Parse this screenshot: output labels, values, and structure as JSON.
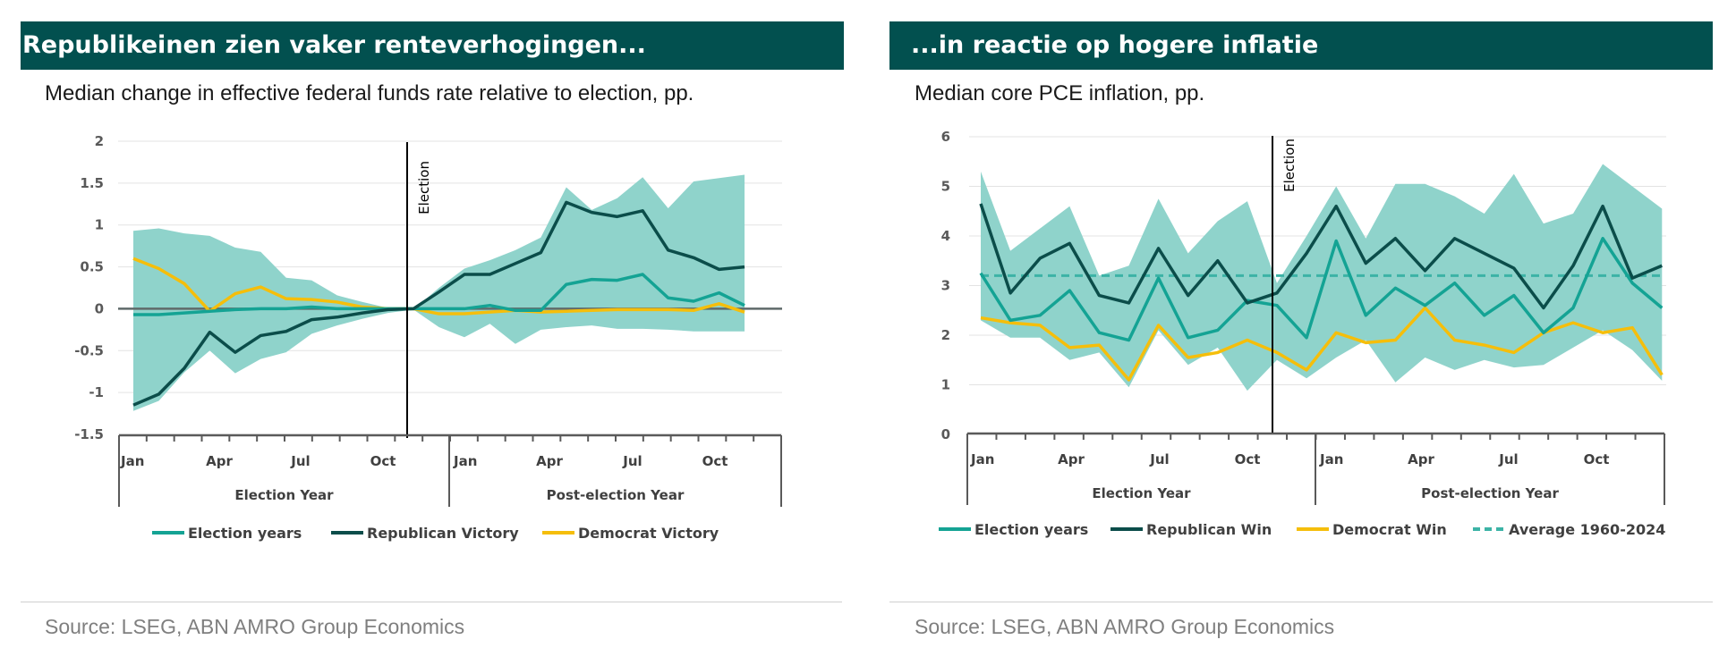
{
  "left": {
    "title": "Republikeinen zien vaker renteverhogingen...",
    "subtitle": "Median change in effective federal funds rate relative to election, pp.",
    "source": "Source:  LSEG, ABN AMRO Group Economics"
  },
  "right": {
    "title": "...in reactie op hogere inflatie",
    "subtitle": "Median core PCE inflation, pp.",
    "source": "Source: LSEG, ABN AMRO Group Economics"
  },
  "colors": {
    "band": "#8fd3cb",
    "election_years": "#14a394",
    "republican": "#0b4d4a",
    "democrat": "#f5be0b",
    "average": "#3cb3a6",
    "axis": "#5a5a5a"
  },
  "chart_data": [
    {
      "type": "line",
      "chart_id": "left",
      "ylim": [
        -1.5,
        2
      ],
      "yticks": [
        "2",
        "1.5",
        "1",
        "0.5",
        "0",
        "-0.5",
        "-1",
        "-1.5"
      ],
      "xlabels": [
        "Jan",
        "Apr",
        "Jul",
        "Oct",
        "Jan",
        "Apr",
        "Jul",
        "Oct"
      ],
      "group_labels": [
        "Election Year",
        "Post-election Year"
      ],
      "election_label": "Election",
      "legend": [
        "Election years",
        "Republican Victory",
        "Democrat Victory"
      ],
      "band_upper": [
        0.93,
        0.96,
        0.9,
        0.87,
        0.73,
        0.68,
        0.37,
        0.34,
        0.16,
        0.08,
        0.01,
        -0.01,
        0.25,
        0.48,
        0.58,
        0.7,
        0.85,
        1.45,
        1.18,
        1.32,
        1.57,
        1.2,
        1.52,
        1.56,
        1.6
      ],
      "band_lower": [
        -1.22,
        -1.1,
        -0.76,
        -0.5,
        -0.77,
        -0.6,
        -0.52,
        -0.3,
        -0.2,
        -0.12,
        -0.05,
        -0.01,
        -0.22,
        -0.34,
        -0.18,
        -0.42,
        -0.25,
        -0.22,
        -0.2,
        -0.24,
        -0.24,
        -0.25,
        -0.27,
        -0.27,
        -0.27
      ],
      "series": [
        {
          "name": "Election years",
          "values": [
            -0.07,
            -0.07,
            -0.05,
            -0.03,
            -0.01,
            0.0,
            0.0,
            0.02,
            0.0,
            0.0,
            0.0,
            0.0,
            0.0,
            0.0,
            0.04,
            -0.02,
            -0.02,
            0.29,
            0.35,
            0.34,
            0.41,
            0.13,
            0.09,
            0.19,
            0.04
          ]
        },
        {
          "name": "Republican Victory",
          "values": [
            -1.15,
            -1.02,
            -0.71,
            -0.28,
            -0.52,
            -0.32,
            -0.27,
            -0.13,
            -0.1,
            -0.05,
            -0.01,
            0.0,
            0.2,
            0.41,
            0.41,
            0.54,
            0.67,
            1.27,
            1.15,
            1.1,
            1.17,
            0.7,
            0.61,
            0.47,
            0.5
          ]
        },
        {
          "name": "Democrat Victory",
          "values": [
            0.6,
            0.48,
            0.3,
            -0.03,
            0.18,
            0.26,
            0.12,
            0.11,
            0.08,
            0.02,
            0.0,
            0.0,
            -0.06,
            -0.06,
            -0.04,
            -0.02,
            -0.04,
            -0.03,
            -0.02,
            -0.01,
            -0.01,
            -0.01,
            -0.02,
            0.06,
            -0.04
          ]
        }
      ]
    },
    {
      "type": "line",
      "chart_id": "right",
      "ylim": [
        0,
        6
      ],
      "yticks": [
        "6",
        "5",
        "4",
        "3",
        "2",
        "1",
        "0"
      ],
      "xlabels": [
        "Jan",
        "Apr",
        "Jul",
        "Oct",
        "Jan",
        "Apr",
        "Jul",
        "Oct"
      ],
      "group_labels": [
        "Election Year",
        "Post-election Year"
      ],
      "election_label": "Election",
      "legend": [
        "Election years",
        "Republican Win",
        "Democrat Win",
        "Average 1960-2024"
      ],
      "average": 3.2,
      "band_upper": [
        5.3,
        3.7,
        4.15,
        4.6,
        3.2,
        3.4,
        4.75,
        3.65,
        4.3,
        4.7,
        3.05,
        4.0,
        5.0,
        3.95,
        5.05,
        5.05,
        4.8,
        4.45,
        5.25,
        4.25,
        4.45,
        5.45,
        5.0,
        4.55
      ],
      "band_lower": [
        2.3,
        1.95,
        1.95,
        1.5,
        1.65,
        0.95,
        2.1,
        1.4,
        1.75,
        0.88,
        1.5,
        1.13,
        1.55,
        1.9,
        1.05,
        1.55,
        1.3,
        1.5,
        1.35,
        1.4,
        1.75,
        2.1,
        1.7,
        1.08
      ],
      "series": [
        {
          "name": "Election years",
          "values": [
            3.25,
            2.3,
            2.4,
            2.9,
            2.05,
            1.9,
            3.15,
            1.95,
            2.1,
            2.7,
            2.6,
            1.95,
            3.9,
            2.4,
            2.95,
            2.6,
            3.05,
            2.4,
            2.8,
            2.05,
            2.55,
            3.95,
            3.05,
            2.55
          ]
        },
        {
          "name": "Republican Win",
          "values": [
            4.65,
            2.85,
            3.55,
            3.85,
            2.8,
            2.65,
            3.75,
            2.8,
            3.5,
            2.65,
            2.85,
            3.65,
            4.6,
            3.45,
            3.95,
            3.3,
            3.95,
            3.65,
            3.35,
            2.55,
            3.4,
            4.6,
            3.15,
            3.4
          ]
        },
        {
          "name": "Democrat Win",
          "values": [
            2.35,
            2.25,
            2.2,
            1.75,
            1.8,
            1.1,
            2.2,
            1.55,
            1.65,
            1.9,
            1.65,
            1.3,
            2.05,
            1.85,
            1.9,
            2.55,
            1.9,
            1.8,
            1.65,
            2.05,
            2.25,
            2.05,
            2.15,
            1.2
          ]
        },
        {
          "name": "Average 1960-2024",
          "values": [
            3.2,
            3.2
          ]
        }
      ]
    }
  ]
}
